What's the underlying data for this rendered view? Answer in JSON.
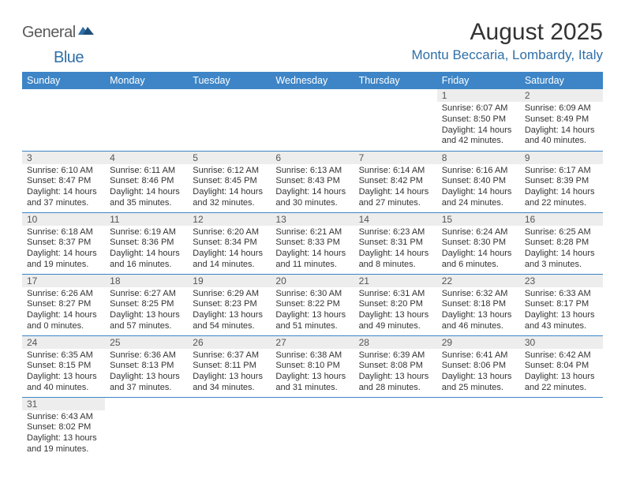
{
  "logo": {
    "part1": "General",
    "part2": "Blue"
  },
  "title": "August 2025",
  "location": "Montu Beccaria, Lombardy, Italy",
  "colors": {
    "header_bg": "#3d85c6",
    "header_text": "#ffffff",
    "daynum_bg": "#ededed",
    "border": "#3d85c6",
    "accent": "#2f6fa8"
  },
  "weekdays": [
    "Sunday",
    "Monday",
    "Tuesday",
    "Wednesday",
    "Thursday",
    "Friday",
    "Saturday"
  ],
  "weeks": [
    [
      null,
      null,
      null,
      null,
      null,
      {
        "n": "1",
        "sr": "6:07 AM",
        "ss": "8:50 PM",
        "dl": "14 hours and 42 minutes."
      },
      {
        "n": "2",
        "sr": "6:09 AM",
        "ss": "8:49 PM",
        "dl": "14 hours and 40 minutes."
      }
    ],
    [
      {
        "n": "3",
        "sr": "6:10 AM",
        "ss": "8:47 PM",
        "dl": "14 hours and 37 minutes."
      },
      {
        "n": "4",
        "sr": "6:11 AM",
        "ss": "8:46 PM",
        "dl": "14 hours and 35 minutes."
      },
      {
        "n": "5",
        "sr": "6:12 AM",
        "ss": "8:45 PM",
        "dl": "14 hours and 32 minutes."
      },
      {
        "n": "6",
        "sr": "6:13 AM",
        "ss": "8:43 PM",
        "dl": "14 hours and 30 minutes."
      },
      {
        "n": "7",
        "sr": "6:14 AM",
        "ss": "8:42 PM",
        "dl": "14 hours and 27 minutes."
      },
      {
        "n": "8",
        "sr": "6:16 AM",
        "ss": "8:40 PM",
        "dl": "14 hours and 24 minutes."
      },
      {
        "n": "9",
        "sr": "6:17 AM",
        "ss": "8:39 PM",
        "dl": "14 hours and 22 minutes."
      }
    ],
    [
      {
        "n": "10",
        "sr": "6:18 AM",
        "ss": "8:37 PM",
        "dl": "14 hours and 19 minutes."
      },
      {
        "n": "11",
        "sr": "6:19 AM",
        "ss": "8:36 PM",
        "dl": "14 hours and 16 minutes."
      },
      {
        "n": "12",
        "sr": "6:20 AM",
        "ss": "8:34 PM",
        "dl": "14 hours and 14 minutes."
      },
      {
        "n": "13",
        "sr": "6:21 AM",
        "ss": "8:33 PM",
        "dl": "14 hours and 11 minutes."
      },
      {
        "n": "14",
        "sr": "6:23 AM",
        "ss": "8:31 PM",
        "dl": "14 hours and 8 minutes."
      },
      {
        "n": "15",
        "sr": "6:24 AM",
        "ss": "8:30 PM",
        "dl": "14 hours and 6 minutes."
      },
      {
        "n": "16",
        "sr": "6:25 AM",
        "ss": "8:28 PM",
        "dl": "14 hours and 3 minutes."
      }
    ],
    [
      {
        "n": "17",
        "sr": "6:26 AM",
        "ss": "8:27 PM",
        "dl": "14 hours and 0 minutes."
      },
      {
        "n": "18",
        "sr": "6:27 AM",
        "ss": "8:25 PM",
        "dl": "13 hours and 57 minutes."
      },
      {
        "n": "19",
        "sr": "6:29 AM",
        "ss": "8:23 PM",
        "dl": "13 hours and 54 minutes."
      },
      {
        "n": "20",
        "sr": "6:30 AM",
        "ss": "8:22 PM",
        "dl": "13 hours and 51 minutes."
      },
      {
        "n": "21",
        "sr": "6:31 AM",
        "ss": "8:20 PM",
        "dl": "13 hours and 49 minutes."
      },
      {
        "n": "22",
        "sr": "6:32 AM",
        "ss": "8:18 PM",
        "dl": "13 hours and 46 minutes."
      },
      {
        "n": "23",
        "sr": "6:33 AM",
        "ss": "8:17 PM",
        "dl": "13 hours and 43 minutes."
      }
    ],
    [
      {
        "n": "24",
        "sr": "6:35 AM",
        "ss": "8:15 PM",
        "dl": "13 hours and 40 minutes."
      },
      {
        "n": "25",
        "sr": "6:36 AM",
        "ss": "8:13 PM",
        "dl": "13 hours and 37 minutes."
      },
      {
        "n": "26",
        "sr": "6:37 AM",
        "ss": "8:11 PM",
        "dl": "13 hours and 34 minutes."
      },
      {
        "n": "27",
        "sr": "6:38 AM",
        "ss": "8:10 PM",
        "dl": "13 hours and 31 minutes."
      },
      {
        "n": "28",
        "sr": "6:39 AM",
        "ss": "8:08 PM",
        "dl": "13 hours and 28 minutes."
      },
      {
        "n": "29",
        "sr": "6:41 AM",
        "ss": "8:06 PM",
        "dl": "13 hours and 25 minutes."
      },
      {
        "n": "30",
        "sr": "6:42 AM",
        "ss": "8:04 PM",
        "dl": "13 hours and 22 minutes."
      }
    ],
    [
      {
        "n": "31",
        "sr": "6:43 AM",
        "ss": "8:02 PM",
        "dl": "13 hours and 19 minutes."
      },
      null,
      null,
      null,
      null,
      null,
      null
    ]
  ],
  "labels": {
    "sunrise": "Sunrise: ",
    "sunset": "Sunset: ",
    "daylight": "Daylight: "
  }
}
